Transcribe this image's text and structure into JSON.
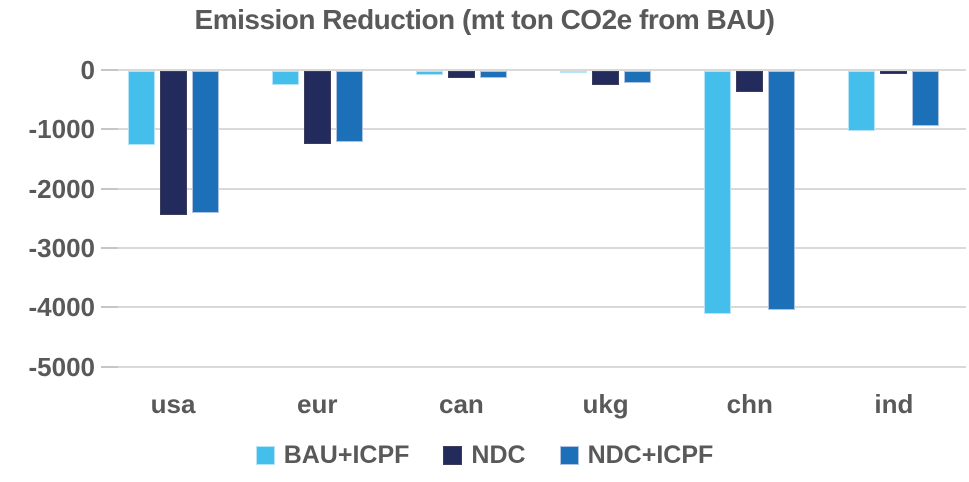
{
  "chart_data": {
    "type": "bar",
    "title": "Emission Reduction (mt ton CO2e from BAU)",
    "categories": [
      "usa",
      "eur",
      "can",
      "ukg",
      "chn",
      "ind"
    ],
    "series": [
      {
        "name": "BAU+ICPF",
        "color": "#44BEEB",
        "border": "#B5E3F8",
        "values": [
          -1250,
          -230,
          -75,
          -25,
          -4100,
          -1020
        ]
      },
      {
        "name": "NDC",
        "color": "#222B5C",
        "border": "#3C3C5E",
        "values": [
          -2420,
          -1230,
          -125,
          -230,
          -350,
          -50
        ]
      },
      {
        "name": "NDC+ICPF",
        "color": "#1C70B8",
        "border": "#AFC2E2",
        "values": [
          -2400,
          -1200,
          -110,
          -200,
          -4030,
          -920
        ]
      }
    ],
    "xlabel": "",
    "ylabel": "",
    "ylim": [
      -5000,
      0
    ],
    "yticks": [
      0,
      -1000,
      -2000,
      -3000,
      -4000,
      -5000
    ],
    "ytick_labels": [
      "0",
      "-1000",
      "-2000",
      "-3000",
      "-4000",
      "-5000"
    ],
    "grid": true,
    "legend_position": "bottom",
    "colors": {
      "text": "#595959",
      "gridline": "#D9D9D9",
      "tick_mark": "#C6C6C6",
      "background": "#FFFFFF"
    }
  }
}
